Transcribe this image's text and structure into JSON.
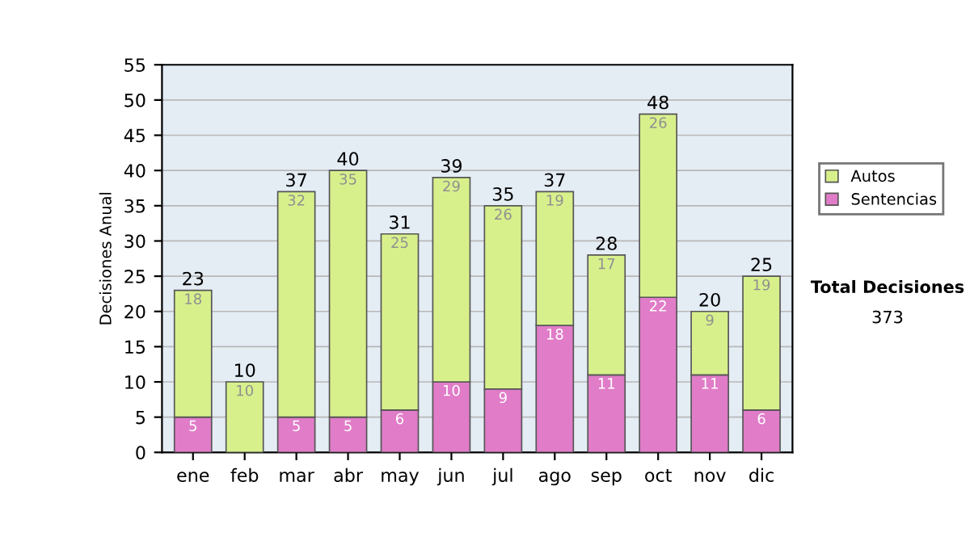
{
  "chart_data": {
    "type": "bar",
    "stacked": true,
    "ylabel": "Decisiones Anual",
    "categories": [
      "ene",
      "feb",
      "mar",
      "abr",
      "may",
      "jun",
      "jul",
      "ago",
      "sep",
      "oct",
      "nov",
      "dic"
    ],
    "series": [
      {
        "name": "Sentencias",
        "color": "#e07cc8",
        "values": [
          5,
          0,
          5,
          5,
          6,
          10,
          9,
          18,
          11,
          22,
          11,
          6
        ],
        "value_labels": [
          "5",
          null,
          "5",
          "5",
          "6",
          "10",
          "9",
          "18",
          "11",
          "22",
          "11",
          "6"
        ]
      },
      {
        "name": "Autos",
        "color": "#d8f08c",
        "values": [
          18,
          10,
          32,
          35,
          25,
          29,
          26,
          19,
          17,
          26,
          9,
          19
        ],
        "value_labels": [
          "18",
          "10",
          "32",
          "35",
          "25",
          "29",
          "26",
          "19",
          "17",
          "26",
          "9",
          "19"
        ]
      }
    ],
    "totals": [
      "23",
      "10",
      "37",
      "40",
      "31",
      "39",
      "35",
      "37",
      "28",
      "48",
      "20",
      "25"
    ],
    "ylim": [
      0,
      55
    ],
    "yticks": [
      0,
      5,
      10,
      15,
      20,
      25,
      30,
      35,
      40,
      45,
      50,
      55
    ],
    "grid": "y",
    "legend": "right",
    "annotations": [
      "Total Decisiones",
      "373"
    ]
  }
}
